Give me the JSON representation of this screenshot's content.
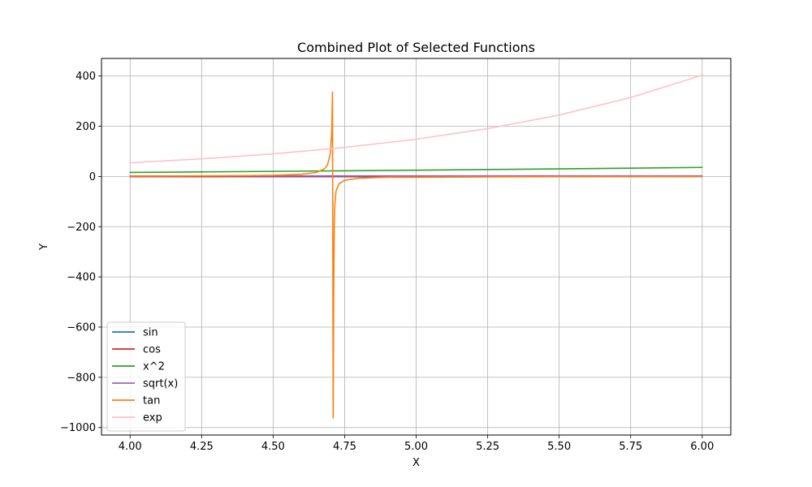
{
  "chart_data": {
    "type": "line",
    "title": "Combined Plot of Selected Functions",
    "xlabel": "X",
    "ylabel": "Y",
    "xlim": [
      3.9,
      6.1
    ],
    "ylim": [
      -1030,
      470
    ],
    "xticks": [
      4.0,
      4.25,
      4.5,
      4.75,
      5.0,
      5.25,
      5.5,
      5.75,
      6.0
    ],
    "xtick_labels": [
      "4.00",
      "4.25",
      "4.50",
      "4.75",
      "5.00",
      "5.25",
      "5.50",
      "5.75",
      "6.00"
    ],
    "yticks": [
      400,
      200,
      0,
      -200,
      -400,
      -600,
      -800,
      -1000
    ],
    "ytick_labels": [
      "400",
      "200",
      "0",
      "−200",
      "−400",
      "−600",
      "−800",
      "−1000"
    ],
    "grid": true,
    "legend_position": "lower-left",
    "series": [
      {
        "name": "sin",
        "color": "#1f77b4",
        "x": [
          4.0,
          4.25,
          4.5,
          4.75,
          5.0,
          5.25,
          5.5,
          5.75,
          6.0
        ],
        "y": [
          -0.757,
          -0.895,
          -0.978,
          -0.999,
          -0.959,
          -0.859,
          -0.706,
          -0.508,
          -0.279
        ]
      },
      {
        "name": "cos",
        "color": "#d62728",
        "x": [
          4.0,
          4.25,
          4.5,
          4.75,
          5.0,
          5.25,
          5.5,
          5.75,
          6.0
        ],
        "y": [
          -0.654,
          -0.446,
          -0.211,
          0.037,
          0.284,
          0.512,
          0.709,
          0.861,
          0.96
        ]
      },
      {
        "name": "x^2",
        "color": "#2ca02c",
        "x": [
          4.0,
          4.25,
          4.5,
          4.75,
          5.0,
          5.25,
          5.5,
          5.75,
          6.0
        ],
        "y": [
          16.0,
          18.06,
          20.25,
          22.56,
          25.0,
          27.56,
          30.25,
          33.06,
          36.0
        ]
      },
      {
        "name": "sqrt(x)",
        "color": "#9467bd",
        "x": [
          4.0,
          4.25,
          4.5,
          4.75,
          5.0,
          5.25,
          5.5,
          5.75,
          6.0
        ],
        "y": [
          2.0,
          2.062,
          2.121,
          2.179,
          2.236,
          2.291,
          2.345,
          2.398,
          2.449
        ]
      },
      {
        "name": "tan",
        "color": "#ff7f0e",
        "x": [
          4.0,
          4.2,
          4.4,
          4.5,
          4.6,
          4.65,
          4.68,
          4.69,
          4.7,
          4.705,
          4.7075,
          4.71,
          4.712,
          4.714,
          4.716,
          4.72,
          4.73,
          4.75,
          4.8,
          4.9,
          5.0,
          5.25,
          5.5,
          5.75,
          6.0
        ],
        "y": [
          1.158,
          1.778,
          3.096,
          4.637,
          8.86,
          15.8,
          30.5,
          45.5,
          90.0,
          179.0,
          336.0,
          -962.0,
          -410.0,
          -170.0,
          -108.0,
          -58.0,
          -29.0,
          -15.0,
          -6.9,
          -3.0,
          -3.38,
          -1.68,
          -0.996,
          -0.59,
          -0.291
        ]
      },
      {
        "name": "exp",
        "color": "#ffc0cb",
        "x": [
          4.0,
          4.25,
          4.5,
          4.75,
          5.0,
          5.25,
          5.5,
          5.75,
          6.0
        ],
        "y": [
          54.6,
          70.1,
          90.0,
          115.6,
          148.4,
          190.6,
          244.7,
          314.2,
          403.4
        ]
      }
    ]
  }
}
